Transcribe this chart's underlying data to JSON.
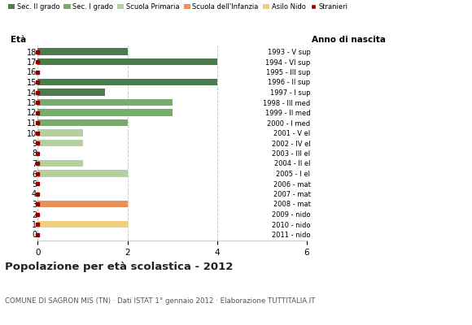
{
  "ages": [
    18,
    17,
    16,
    15,
    14,
    13,
    12,
    11,
    10,
    9,
    8,
    7,
    6,
    5,
    4,
    3,
    2,
    1,
    0
  ],
  "year_labels": [
    "1993 - V sup",
    "1994 - VI sup",
    "1995 - III sup",
    "1996 - II sup",
    "1997 - I sup",
    "1998 - III med",
    "1999 - II med",
    "2000 - I med",
    "2001 - V el",
    "2002 - IV el",
    "2003 - III el",
    "2004 - II el",
    "2005 - I el",
    "2006 - mat",
    "2007 - mat",
    "2008 - mat",
    "2009 - nido",
    "2010 - nido",
    "2011 - nido"
  ],
  "bar_values": [
    2,
    4,
    0,
    4,
    1.5,
    3,
    3,
    2,
    1,
    1,
    0,
    1,
    2,
    0,
    0,
    2,
    0,
    2,
    0
  ],
  "bar_colors": [
    "#4a7c4e",
    "#4a7c4e",
    "#4a7c4e",
    "#4a7c4e",
    "#4a7c4e",
    "#7aab6e",
    "#7aab6e",
    "#7aab6e",
    "#b5cf9e",
    "#b5cf9e",
    "#b5cf9e",
    "#b5cf9e",
    "#b5cf9e",
    "#d4e6b5",
    "#d4e6b5",
    "#e8925a",
    "#e8b97a",
    "#f0d080",
    "#f0d080"
  ],
  "legend_labels": [
    "Sec. II grado",
    "Sec. I grado",
    "Scuola Primaria",
    "Scuola dell'Infanzia",
    "Asilo Nido",
    "Stranieri"
  ],
  "legend_colors": [
    "#4a7c4e",
    "#7aab6e",
    "#b5cf9e",
    "#e8925a",
    "#f0d080",
    "#8b0000"
  ],
  "title": "Popolazione per età scolastica - 2012",
  "subtitle": "COMUNE DI SAGRON MIS (TN) · Dati ISTAT 1° gennaio 2012 · Elaborazione TUTTITALIA.IT",
  "xlabel_left": "Età",
  "xlabel_right": "Anno di nascita",
  "xlim": [
    0,
    6
  ],
  "xticks": [
    0,
    2,
    4,
    6
  ],
  "background_color": "#ffffff",
  "bar_height": 0.65,
  "grid_color": "#cccccc"
}
